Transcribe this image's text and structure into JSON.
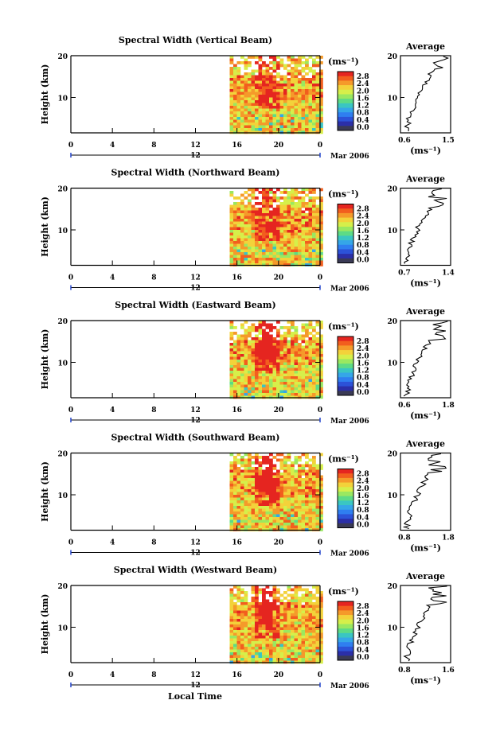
{
  "chart_data": {
    "type": "heatmap",
    "xlabel": "Local Time",
    "x_ticks": [
      "0",
      "4",
      "8",
      "12",
      "16",
      "20",
      "0"
    ],
    "x_range": [
      0,
      24
    ],
    "y_range": [
      0,
      20
    ],
    "ylabel": "Height (km)",
    "y_ticks": [
      "20",
      "10"
    ],
    "date_label": "Mar 2006",
    "date_marker": "12",
    "data_start_hour": 15.3,
    "colorbar": {
      "unit": "(ms⁻¹)",
      "ticks": [
        "2.8",
        "2.4",
        "2.0",
        "1.6",
        "1.2",
        "0.8",
        "0.4",
        "0.0"
      ],
      "colors": [
        "#e52520",
        "#f25e1e",
        "#f59a2a",
        "#f3d23a",
        "#d6ef4a",
        "#9ae860",
        "#5ddb86",
        "#3ac6c2",
        "#35a6e8",
        "#2f7ef0",
        "#2c52d8",
        "#2b2fa8",
        "#3a3a55"
      ]
    },
    "panels": [
      {
        "title": "Spectral Width (Vertical Beam)",
        "avg_title": "Average",
        "avg_xticks": [
          "0.6",
          "1.5"
        ],
        "avg_unit": "(ms⁻¹)",
        "avg_range": [
          0.6,
          1.5
        ]
      },
      {
        "title": "Spectral Width (Northward Beam)",
        "avg_title": "Average",
        "avg_xticks": [
          "0.7",
          "1.4"
        ],
        "avg_unit": "(ms⁻¹)",
        "avg_range": [
          0.7,
          1.4
        ]
      },
      {
        "title": "Spectral Width (Eastward Beam)",
        "avg_title": "Average",
        "avg_xticks": [
          "0.6",
          "1.8"
        ],
        "avg_unit": "(ms⁻¹)",
        "avg_range": [
          0.6,
          1.8
        ]
      },
      {
        "title": "Spectral Width (Southward Beam)",
        "avg_title": "Average",
        "avg_xticks": [
          "0.8",
          "1.8"
        ],
        "avg_unit": "(ms⁻¹)",
        "avg_range": [
          0.8,
          1.8
        ]
      },
      {
        "title": "Spectral Width (Westward Beam)",
        "avg_title": "Average",
        "avg_xticks": [
          "0.8",
          "1.6"
        ],
        "avg_unit": "(ms⁻¹)",
        "avg_range": [
          0.8,
          1.6
        ]
      }
    ]
  }
}
